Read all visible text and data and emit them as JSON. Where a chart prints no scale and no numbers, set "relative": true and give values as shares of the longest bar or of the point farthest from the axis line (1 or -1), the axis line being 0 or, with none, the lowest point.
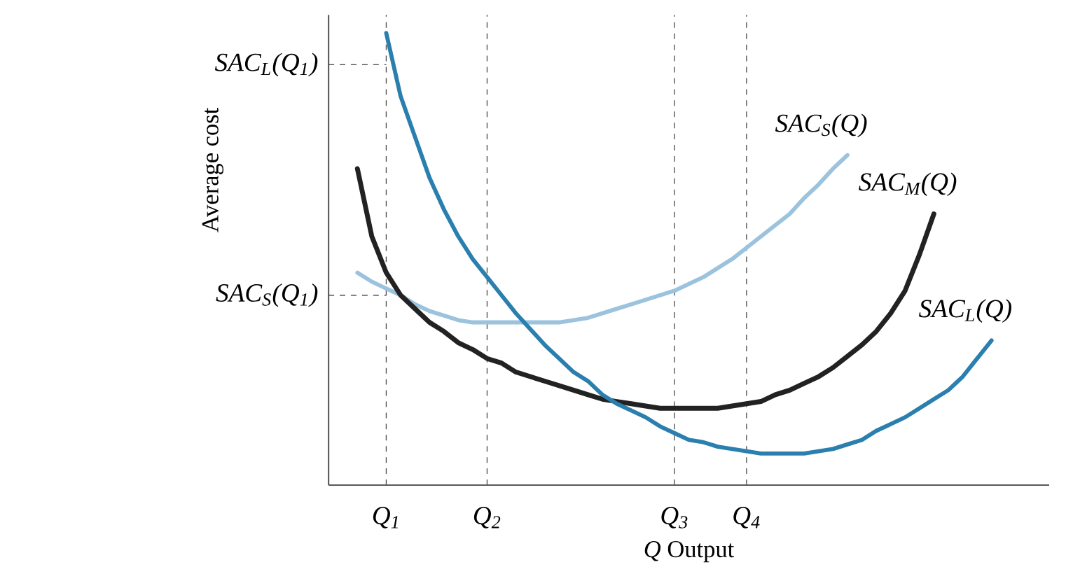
{
  "chart_data": {
    "type": "line",
    "relative": true,
    "xlabel": "*Q* Output",
    "ylabel": "Average cost",
    "grid": "x",
    "categories": [
      null,
      null,
      null,
      null,
      "Q$_{1}$",
      null,
      null,
      null,
      null,
      null,
      null,
      "Q$_{2}$",
      null,
      null,
      null,
      null,
      null,
      null,
      null,
      null,
      null,
      null,
      null,
      null,
      "Q$_{3}$",
      null,
      null,
      null,
      null,
      "Q$_{4}$",
      null,
      null,
      null,
      null,
      null,
      null,
      null,
      null,
      null,
      null,
      null,
      null,
      null,
      null,
      null,
      null,
      null,
      null,
      null,
      null,
      null
    ],
    "series": [
      {
        "name": "SAC$_{S}$(Q)",
        "color": "#9cc3de",
        "values": [
          null,
          null,
          0.47,
          0.45,
          0.435,
          0.42,
          0.4,
          0.385,
          0.375,
          0.365,
          0.36,
          0.36,
          0.36,
          0.36,
          0.36,
          0.36,
          0.36,
          0.365,
          0.37,
          0.38,
          0.39,
          0.4,
          0.41,
          0.42,
          0.43,
          0.445,
          0.46,
          0.48,
          0.5,
          0.525,
          0.55,
          0.575,
          0.6,
          0.635,
          0.665,
          0.7,
          0.73,
          null,
          null,
          null,
          null,
          null,
          null,
          null,
          null,
          null,
          null,
          null,
          null,
          null,
          null
        ]
      },
      {
        "name": "SAC$_{M}$(Q)",
        "color": "#222222",
        "values": [
          null,
          null,
          0.7,
          0.55,
          0.47,
          0.42,
          0.39,
          0.36,
          0.34,
          0.315,
          0.3,
          0.28,
          0.27,
          0.25,
          0.24,
          0.23,
          0.22,
          0.21,
          0.2,
          0.19,
          0.185,
          0.18,
          0.175,
          0.17,
          0.17,
          0.17,
          0.17,
          0.17,
          0.175,
          0.18,
          0.185,
          0.2,
          0.21,
          0.225,
          0.24,
          0.26,
          0.285,
          0.31,
          0.34,
          0.38,
          0.43,
          0.51,
          0.6,
          null,
          null,
          null,
          null,
          null,
          null,
          null,
          null
        ]
      },
      {
        "name": "SAC$_{L}$(Q)",
        "color": "#2a7fae",
        "values": [
          null,
          null,
          null,
          null,
          1.0,
          0.86,
          0.77,
          0.68,
          0.61,
          0.55,
          0.5,
          0.46,
          0.42,
          0.38,
          0.345,
          0.31,
          0.28,
          0.25,
          0.23,
          0.2,
          0.18,
          0.165,
          0.15,
          0.13,
          0.115,
          0.1,
          0.095,
          0.085,
          0.08,
          0.075,
          0.07,
          0.07,
          0.07,
          0.07,
          0.075,
          0.08,
          0.09,
          0.1,
          0.12,
          0.135,
          0.15,
          0.17,
          0.19,
          0.21,
          0.24,
          0.28,
          0.32,
          null,
          null,
          null,
          null
        ]
      }
    ],
    "ref_lines": [
      {
        "axis": "y",
        "value": 0.93,
        "label": "SAC$_{L}$(Q$_{1}$)",
        "line_style": "dashed"
      },
      {
        "axis": "y",
        "value": 0.42,
        "label": "SAC$_{S}$(Q$_{1}$)",
        "line_style": "dashed"
      }
    ]
  }
}
